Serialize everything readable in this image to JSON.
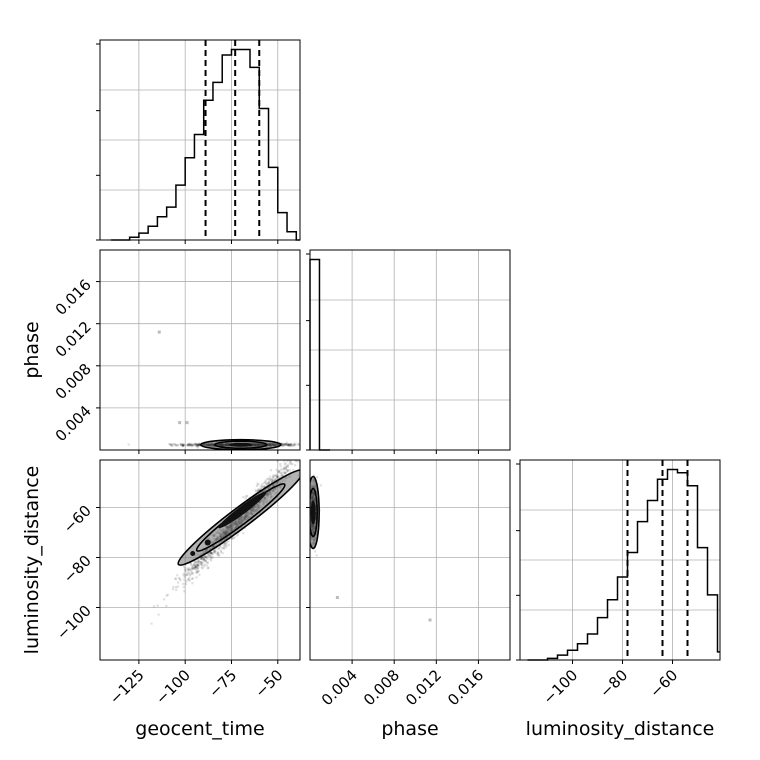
{
  "chart_data": {
    "type": "corner",
    "parameters": [
      {
        "key": "geocent_time",
        "label": "geocent_time",
        "range": [
          -146,
          -38
        ],
        "ticks": [
          -125,
          -100,
          -75,
          -50
        ],
        "tick_labels": [
          "−125",
          "−100",
          "−75",
          "−50"
        ],
        "quantiles": [
          -89,
          -73,
          -60
        ]
      },
      {
        "key": "phase",
        "label": "phase",
        "range": [
          0.0,
          0.019
        ],
        "ticks": [
          0.004,
          0.008,
          0.012,
          0.016
        ],
        "tick_labels": [
          "0.004",
          "0.008",
          "0.012",
          "0.016"
        ]
      },
      {
        "key": "luminosity_distance",
        "label": "luminosity_distance",
        "range": [
          -121,
          -41
        ],
        "ticks": [
          -100,
          -80,
          -60
        ],
        "tick_labels": [
          "−100",
          "−80",
          "−60"
        ],
        "quantiles": [
          -78,
          -64,
          -54
        ]
      }
    ],
    "histograms": {
      "geocent_time": {
        "bin_edges": [
          -140,
          -135,
          -130,
          -125,
          -120,
          -115,
          -110,
          -105,
          -100,
          -95,
          -90,
          -85,
          -80,
          -75,
          -70,
          -65,
          -60,
          -55,
          -50,
          -45,
          -40,
          -38
        ],
        "counts": [
          0,
          0,
          2,
          5,
          10,
          17,
          24,
          40,
          60,
          77,
          102,
          115,
          135,
          139,
          139,
          126,
          96,
          53,
          20,
          6,
          0
        ]
      },
      "phase": {
        "bin_edges": [
          0.0,
          0.0009,
          0.0019
        ],
        "counts": [
          1,
          0
        ]
      },
      "luminosity_distance": {
        "bin_edges": [
          -118,
          -114,
          -110,
          -106,
          -102,
          -98,
          -94,
          -90,
          -86,
          -82,
          -78,
          -74,
          -70,
          -66,
          -62,
          -58,
          -54,
          -50,
          -46,
          -42,
          -41
        ],
        "counts": [
          0,
          0,
          1,
          3,
          6,
          10,
          16,
          26,
          37,
          51,
          66,
          85,
          98,
          111,
          117,
          115,
          107,
          69,
          40,
          5
        ]
      }
    },
    "samples_2d": {
      "geocent_time_vs_phase": {
        "center": [
          -70,
          0.0005
        ],
        "sigma": [
          15,
          6e-05
        ]
      },
      "geocent_time_vs_luminosity_distance": {
        "center": [
          -70,
          -64
        ],
        "slope": 0.77,
        "sigma": [
          15,
          2.5
        ]
      },
      "phase_vs_luminosity_distance": {
        "center": [
          0.0003,
          -62
        ],
        "sigma": [
          0.0002,
          5
        ]
      },
      "outliers": [
        [
          -114,
          0.0112
        ],
        [
          -103,
          0.0026
        ],
        [
          -99,
          0.0026
        ],
        [
          0.0026,
          -96
        ],
        [
          0.0114,
          -105
        ]
      ]
    },
    "grid": true
  }
}
